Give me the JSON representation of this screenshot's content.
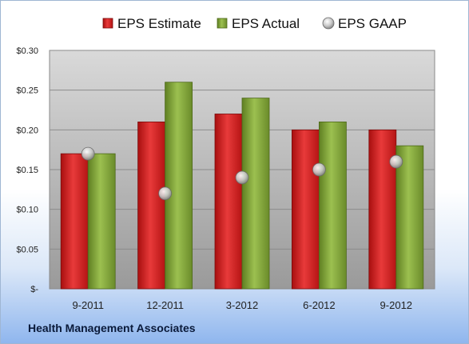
{
  "chart_data": {
    "type": "bar",
    "categories": [
      "9-2011",
      "12-2011",
      "3-2012",
      "6-2012",
      "9-2012"
    ],
    "series": [
      {
        "name": "EPS Estimate",
        "kind": "bar",
        "color": "#d42020",
        "values": [
          0.17,
          0.21,
          0.22,
          0.2,
          0.2
        ]
      },
      {
        "name": "EPS Actual",
        "kind": "bar",
        "color": "#8aac3c",
        "values": [
          0.17,
          0.26,
          0.24,
          0.21,
          0.18
        ]
      },
      {
        "name": "EPS GAAP",
        "kind": "marker",
        "color": "#c8c8c8",
        "values": [
          0.17,
          0.12,
          0.14,
          0.15,
          0.16
        ]
      }
    ],
    "ylim": [
      0,
      0.3
    ],
    "yticks": [
      0,
      0.05,
      0.1,
      0.15,
      0.2,
      0.25,
      0.3
    ],
    "ytick_labels": [
      "$-",
      "$0.05",
      "$0.10",
      "$0.15",
      "$0.20",
      "$0.25",
      "$0.30"
    ],
    "grid": true,
    "legend_position": "top"
  },
  "footer": {
    "company": "Health Management Associates"
  }
}
